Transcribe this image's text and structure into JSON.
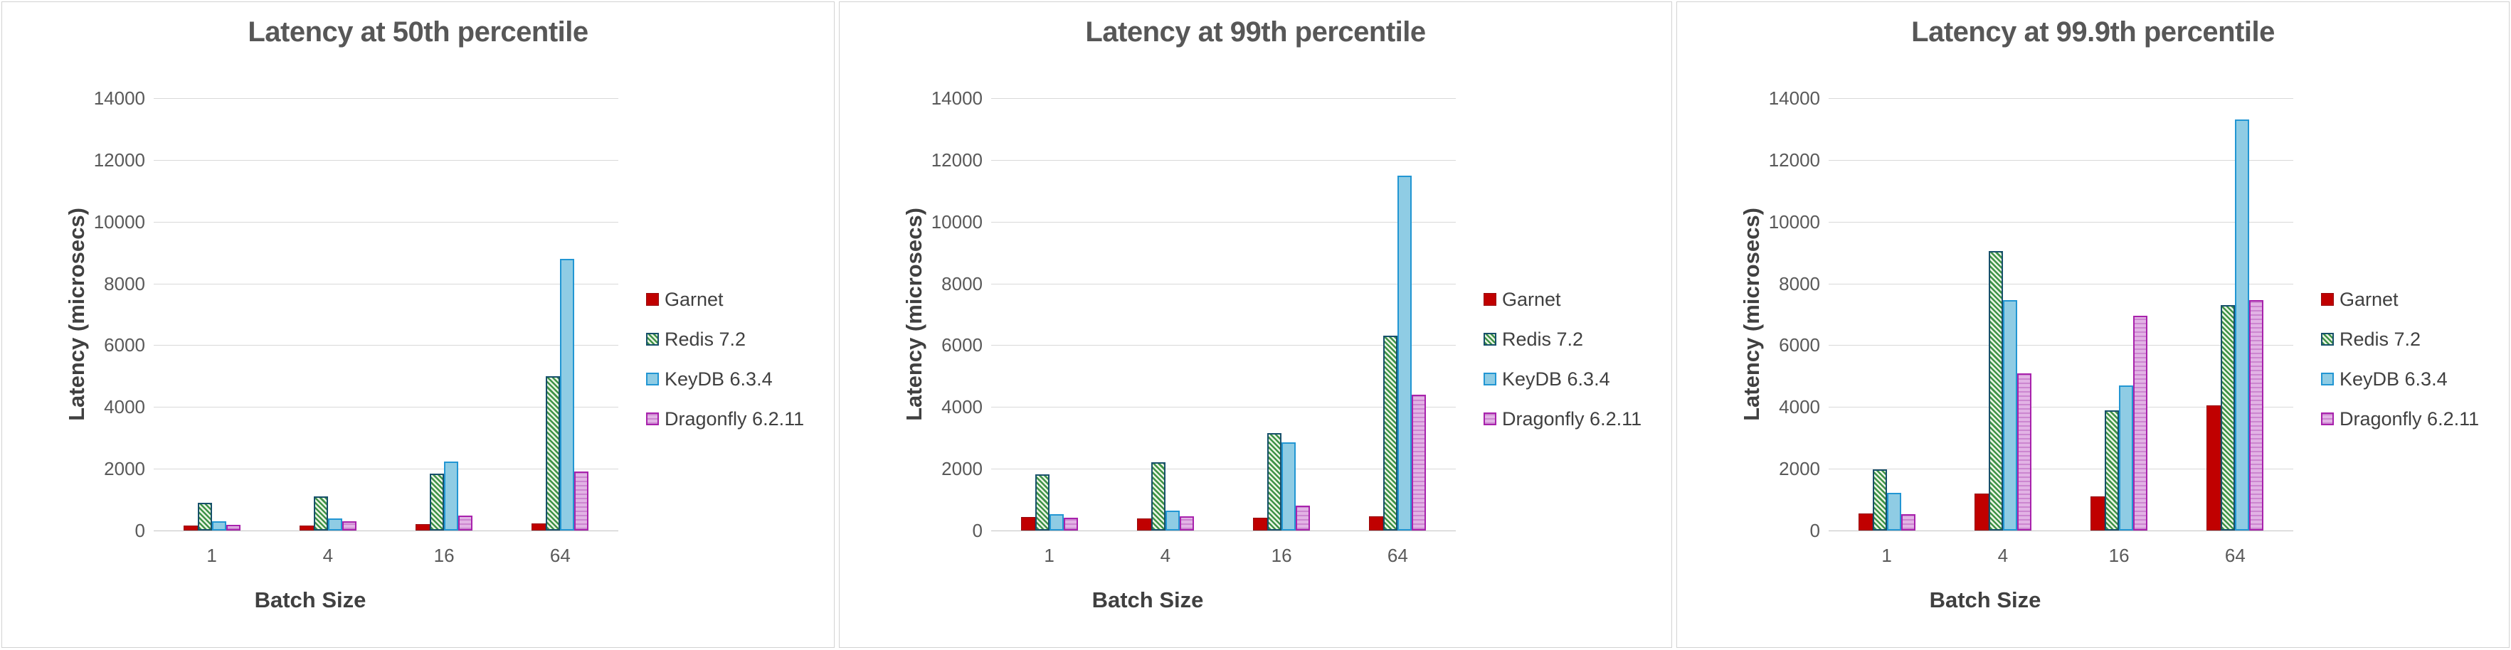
{
  "figure": {
    "background": "#ffffff",
    "panel_border_color": "#d2d2d2"
  },
  "colors": {
    "garnet_fill": "#c00000",
    "garnet_border": "#96090d",
    "redis_hatch": "#3e9247",
    "redis_hatch_bg": "#ecf5e5",
    "redis_border": "#17506b",
    "keydb_fill": "#8fcce4",
    "keydb_border": "#2296d3",
    "dragonfly_stripe": "#cc86d0",
    "dragonfly_fill": "#e2b3e5",
    "dragonfly_border": "#a822ac",
    "gridline": "#d9d9d9",
    "title_text": "#575757",
    "axis_title_text": "#404040",
    "tick_text": "#595959"
  },
  "chart_data": [
    {
      "type": "bar",
      "title": "Latency at 50th percentile",
      "xlabel": "Batch Size",
      "ylabel": "Latency (microsecs)",
      "categories": [
        "1",
        "4",
        "16",
        "64"
      ],
      "ylim": [
        0,
        14000
      ],
      "ytick_step": 2000,
      "ytick_labels": [
        "0",
        "2000",
        "4000",
        "6000",
        "8000",
        "10000",
        "12000",
        "14000"
      ],
      "grid": true,
      "legend_position": "right",
      "series": [
        {
          "name": "Garnet",
          "values": [
            160,
            170,
            200,
            240
          ]
        },
        {
          "name": "Redis 7.2",
          "values": [
            900,
            1100,
            1850,
            5000
          ]
        },
        {
          "name": "KeyDB 6.3.4",
          "values": [
            290,
            400,
            2240,
            8800
          ]
        },
        {
          "name": "Dragonfly 6.2.11",
          "values": [
            190,
            300,
            490,
            1900
          ]
        }
      ]
    },
    {
      "type": "bar",
      "title": "Latency at 99th percentile",
      "xlabel": "Batch Size",
      "ylabel": "Latency (microsecs)",
      "categories": [
        "1",
        "4",
        "16",
        "64"
      ],
      "ylim": [
        0,
        14000
      ],
      "ytick_step": 2000,
      "ytick_labels": [
        "0",
        "2000",
        "4000",
        "6000",
        "8000",
        "10000",
        "12000",
        "14000"
      ],
      "grid": true,
      "legend_position": "right",
      "series": [
        {
          "name": "Garnet",
          "values": [
            430,
            400,
            420,
            470
          ]
        },
        {
          "name": "Redis 7.2",
          "values": [
            1830,
            2200,
            3160,
            6300
          ]
        },
        {
          "name": "KeyDB 6.3.4",
          "values": [
            530,
            640,
            2860,
            11500
          ]
        },
        {
          "name": "Dragonfly 6.2.11",
          "values": [
            410,
            470,
            810,
            4400
          ]
        }
      ]
    },
    {
      "type": "bar",
      "title": "Latency at 99.9th percentile",
      "xlabel": "Batch Size",
      "ylabel": "Latency (microsecs)",
      "categories": [
        "1",
        "4",
        "16",
        "64"
      ],
      "ylim": [
        0,
        14000
      ],
      "ytick_step": 2000,
      "ytick_labels": [
        "0",
        "2000",
        "4000",
        "6000",
        "8000",
        "10000",
        "12000",
        "14000"
      ],
      "grid": true,
      "legend_position": "right",
      "series": [
        {
          "name": "Garnet",
          "values": [
            550,
            1200,
            1100,
            4050
          ]
        },
        {
          "name": "Redis 7.2",
          "values": [
            1980,
            9050,
            3900,
            7300
          ]
        },
        {
          "name": "KeyDB 6.3.4",
          "values": [
            1230,
            7450,
            4700,
            13300
          ]
        },
        {
          "name": "Dragonfly 6.2.11",
          "values": [
            520,
            5100,
            6950,
            7450
          ]
        }
      ]
    }
  ]
}
